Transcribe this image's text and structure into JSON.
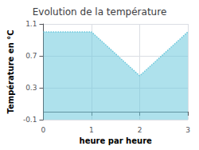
{
  "chart_data": {
    "type": "area",
    "title": "Evolution de la température",
    "x": [
      0,
      1,
      2,
      3
    ],
    "values": [
      1.0,
      1.0,
      0.45,
      1.0
    ],
    "xlabel": "heure par heure",
    "ylabel": "Température en °C",
    "xlim": [
      0,
      3
    ],
    "ylim": [
      -0.1,
      1.1
    ],
    "xticks": [
      0,
      1,
      2,
      3
    ],
    "yticks": [
      -0.1,
      0.3,
      0.7,
      1.1
    ],
    "color": "#6cc8dc",
    "line_style": "dotted",
    "grid": true
  }
}
